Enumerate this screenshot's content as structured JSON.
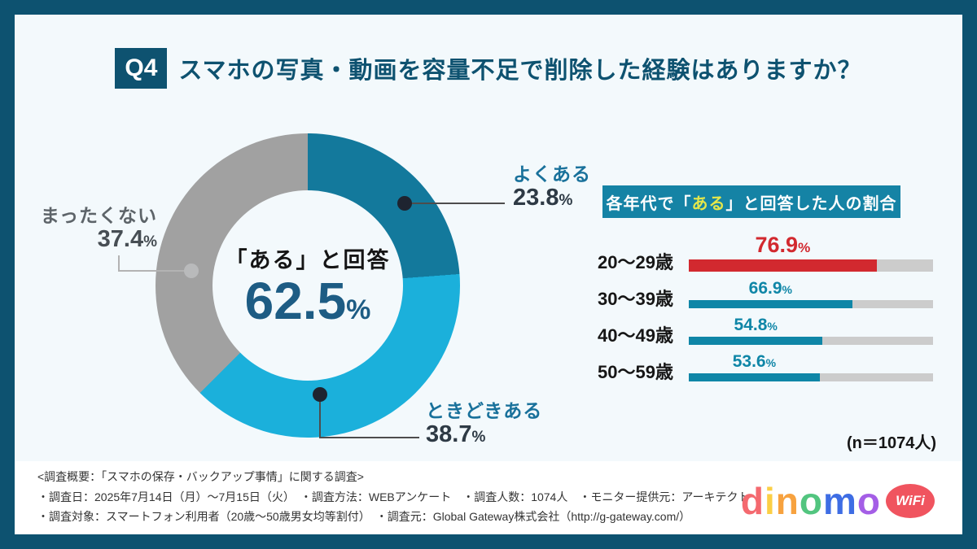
{
  "frame": {
    "border_color": "#0d5270",
    "background": "#f3f9fc"
  },
  "header": {
    "badge": "Q4",
    "title": "スマホの写真・動画を容量不足で削除した経験はありますか？"
  },
  "chart_data": [
    {
      "type": "pie",
      "variant": "donut",
      "start_angle_deg": 0,
      "direction": "clockwise",
      "center_label": "「ある」と回答",
      "center_value": "62.5",
      "unit": "%",
      "segments": [
        {
          "label": "よくある",
          "value": 23.8,
          "color": "#13799c"
        },
        {
          "label": "ときどきある",
          "value": 38.7,
          "color": "#1bb0db"
        },
        {
          "label": "まったくない",
          "value": 37.4,
          "color": "#a1a1a1"
        }
      ]
    },
    {
      "type": "bar",
      "orientation": "horizontal",
      "title_prefix": "各年代で「",
      "title_highlight": "ある",
      "title_suffix": "」と回答した人の割合",
      "highlight_color": "#e5e74a",
      "unit": "%",
      "xlim": [
        0,
        100
      ],
      "track_color": "#cccccc",
      "rows": [
        {
          "label": "20〜29歳",
          "value": 76.9,
          "color": "#d2292f"
        },
        {
          "label": "30〜39歳",
          "value": 66.9,
          "color": "#0f86a7"
        },
        {
          "label": "40〜49歳",
          "value": 54.8,
          "color": "#0f86a7"
        },
        {
          "label": "50〜59歳",
          "value": 53.6,
          "color": "#0f86a7"
        }
      ],
      "note": "(n＝1074人)"
    }
  ],
  "footer": {
    "line1": "<調査概要：「スマホの保存・バックアップ事情」に関する調査>",
    "line2": "・調査日：2025年7月14日（月）〜7月15日（火）　・調査方法：WEBアンケート　・調査人数：1074人　・モニター提供元：アーキテクト",
    "line3": "・調査対象：スマートフォン利用者（20歳〜50歳男女均等割付）　・調査元：Global Gateway株式会社（http://g-gateway.com/）",
    "logo": {
      "letters": [
        {
          "char": "d",
          "color": "#f4696f"
        },
        {
          "char": "i",
          "color": "#fbcf45"
        },
        {
          "char": "n",
          "color": "#f7a23f"
        },
        {
          "char": "o",
          "color": "#52c57f"
        },
        {
          "char": "m",
          "color": "#3e6de4"
        },
        {
          "char": "o",
          "color": "#a45ee6"
        }
      ],
      "badge": "WiFi",
      "badge_color": "#f0545f"
    }
  }
}
